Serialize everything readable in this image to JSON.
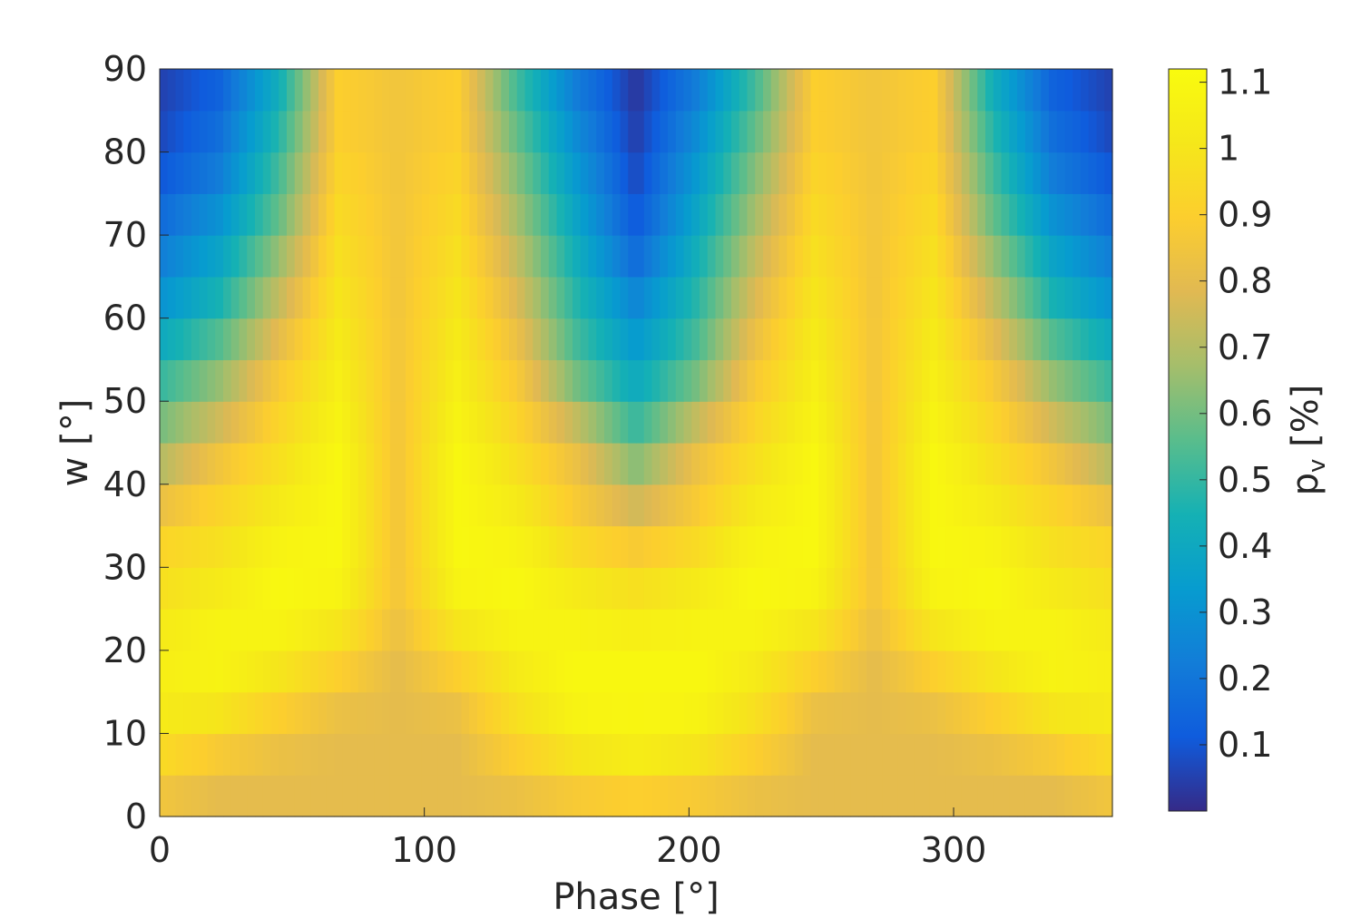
{
  "chart_data": {
    "type": "heatmap",
    "title": "",
    "xlabel": "Phase [°]",
    "ylabel": "w [°]",
    "colorbar_label_main": "p",
    "colorbar_label_sub": "v",
    "colorbar_label_unit": " [%]",
    "xlim": [
      0,
      360
    ],
    "ylim": [
      0,
      90
    ],
    "clim": [
      0.0,
      1.12
    ],
    "xticks": [
      0,
      100,
      200,
      300
    ],
    "yticks": [
      0,
      10,
      20,
      30,
      40,
      50,
      60,
      70,
      80,
      90
    ],
    "cticks": [
      0.1,
      0.2,
      0.3,
      0.4,
      0.5,
      0.6,
      0.7,
      0.8,
      0.9,
      1,
      1.1
    ],
    "colormap": "parula",
    "grid": false,
    "x": [
      0,
      22.5,
      45,
      67.5,
      90,
      112.5,
      135,
      157.5,
      180,
      202.5,
      225,
      247.5,
      270,
      292.5,
      315,
      337.5,
      360
    ],
    "y": [
      0,
      5,
      10,
      15,
      20,
      25,
      30,
      35,
      40,
      45,
      50,
      55,
      60,
      65,
      70,
      75,
      80,
      85,
      90
    ],
    "values": [
      [
        0.8,
        0.8,
        0.8,
        0.8,
        0.8,
        0.8,
        0.8,
        0.8,
        0.8,
        0.8,
        0.8,
        0.8,
        0.8,
        0.8,
        0.8,
        0.8,
        0.8
      ],
      [
        0.9,
        0.8,
        0.8,
        0.8,
        0.8,
        0.8,
        0.85,
        0.95,
        1.0,
        0.95,
        0.85,
        0.8,
        0.8,
        0.8,
        0.8,
        0.8,
        0.9
      ],
      [
        1.0,
        0.95,
        0.85,
        0.8,
        0.8,
        0.8,
        0.95,
        1.05,
        1.08,
        1.05,
        0.95,
        0.8,
        0.8,
        0.8,
        0.85,
        0.95,
        1.0
      ],
      [
        1.05,
        1.05,
        0.95,
        0.85,
        0.8,
        0.85,
        1.0,
        1.1,
        1.1,
        1.1,
        1.0,
        0.85,
        0.8,
        0.85,
        0.95,
        1.05,
        1.05
      ],
      [
        1.05,
        1.1,
        1.05,
        0.95,
        0.8,
        0.95,
        1.05,
        1.1,
        1.1,
        1.1,
        1.05,
        0.95,
        0.8,
        0.95,
        1.05,
        1.1,
        1.05
      ],
      [
        1.0,
        1.05,
        1.1,
        1.05,
        0.85,
        1.05,
        1.1,
        1.05,
        1.0,
        1.05,
        1.1,
        1.05,
        0.85,
        1.05,
        1.1,
        1.05,
        1.0
      ],
      [
        0.95,
        1.0,
        1.1,
        1.1,
        0.85,
        1.1,
        1.1,
        1.0,
        0.95,
        1.0,
        1.1,
        1.1,
        0.85,
        1.1,
        1.1,
        1.0,
        0.95
      ],
      [
        0.9,
        0.95,
        1.05,
        1.1,
        0.85,
        1.1,
        1.05,
        0.9,
        0.8,
        0.9,
        1.05,
        1.1,
        0.85,
        1.1,
        1.05,
        0.95,
        0.9
      ],
      [
        0.75,
        0.9,
        1.0,
        1.1,
        0.85,
        1.1,
        1.0,
        0.85,
        0.7,
        0.85,
        1.0,
        1.1,
        0.85,
        1.1,
        1.0,
        0.9,
        0.75
      ],
      [
        0.65,
        0.8,
        0.95,
        1.1,
        0.85,
        1.1,
        0.95,
        0.8,
        0.55,
        0.8,
        0.95,
        1.1,
        0.85,
        1.1,
        0.95,
        0.8,
        0.65
      ],
      [
        0.55,
        0.7,
        0.9,
        1.05,
        0.85,
        1.05,
        0.9,
        0.65,
        0.45,
        0.65,
        0.9,
        1.05,
        0.85,
        1.05,
        0.9,
        0.7,
        0.55
      ],
      [
        0.45,
        0.6,
        0.85,
        1.05,
        0.85,
        1.05,
        0.85,
        0.55,
        0.35,
        0.55,
        0.85,
        1.05,
        0.85,
        1.05,
        0.85,
        0.6,
        0.45
      ],
      [
        0.35,
        0.5,
        0.75,
        1.0,
        0.85,
        1.0,
        0.8,
        0.5,
        0.3,
        0.5,
        0.8,
        1.0,
        0.85,
        1.0,
        0.75,
        0.5,
        0.35
      ],
      [
        0.25,
        0.4,
        0.7,
        1.0,
        0.85,
        1.0,
        0.75,
        0.45,
        0.2,
        0.45,
        0.75,
        1.0,
        0.85,
        1.0,
        0.7,
        0.4,
        0.25
      ],
      [
        0.2,
        0.35,
        0.6,
        0.95,
        0.85,
        0.95,
        0.7,
        0.4,
        0.12,
        0.4,
        0.7,
        0.95,
        0.85,
        0.95,
        0.6,
        0.35,
        0.2
      ],
      [
        0.12,
        0.25,
        0.55,
        0.95,
        0.85,
        0.95,
        0.65,
        0.35,
        0.08,
        0.35,
        0.65,
        0.95,
        0.85,
        0.95,
        0.55,
        0.25,
        0.12
      ],
      [
        0.08,
        0.2,
        0.5,
        0.9,
        0.85,
        0.9,
        0.6,
        0.3,
        0.05,
        0.3,
        0.6,
        0.9,
        0.85,
        0.9,
        0.5,
        0.2,
        0.08
      ],
      [
        0.05,
        0.15,
        0.45,
        0.9,
        0.85,
        0.9,
        0.55,
        0.25,
        0.03,
        0.25,
        0.55,
        0.9,
        0.85,
        0.9,
        0.45,
        0.15,
        0.05
      ],
      [
        0.05,
        0.12,
        0.4,
        0.9,
        0.85,
        0.9,
        0.5,
        0.2,
        0.02,
        0.2,
        0.5,
        0.9,
        0.85,
        0.9,
        0.4,
        0.12,
        0.05
      ]
    ]
  }
}
